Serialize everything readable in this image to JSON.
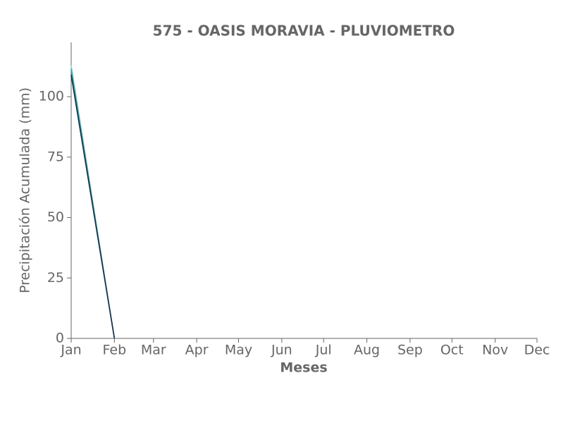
{
  "chart_data": {
    "type": "line",
    "title": "575 - OASIS MORAVIA - PLUVIOMETRO",
    "x_label": "Meses",
    "y_label": "Precipitación Acumulada (mm)",
    "series": [
      {
        "color": "#8fd3e0",
        "x": [
          0,
          31
        ],
        "values": [
          113,
          0
        ]
      },
      {
        "color": "#2ba6a6",
        "x": [
          0,
          31
        ],
        "values": [
          111.5,
          0
        ]
      },
      {
        "color": "#1b2a44",
        "x": [
          0,
          31
        ],
        "values": [
          109,
          0
        ]
      }
    ],
    "xlim": [
      0,
      334
    ],
    "xticks": [
      {
        "value": 0,
        "label": "Jan"
      },
      {
        "value": 31,
        "label": "Feb"
      },
      {
        "value": 59,
        "label": "Mar"
      },
      {
        "value": 90,
        "label": "Apr"
      },
      {
        "value": 120,
        "label": "May"
      },
      {
        "value": 151,
        "label": "Jun"
      },
      {
        "value": 181,
        "label": "Jul"
      },
      {
        "value": 212,
        "label": "Aug"
      },
      {
        "value": 243,
        "label": "Sep"
      },
      {
        "value": 273,
        "label": "Oct"
      },
      {
        "value": 304,
        "label": "Nov"
      },
      {
        "value": 334,
        "label": "Dec"
      }
    ],
    "ylim": [
      0,
      122.5
    ],
    "yticks": [
      0,
      25,
      50,
      75,
      100
    ],
    "grid": false
  }
}
